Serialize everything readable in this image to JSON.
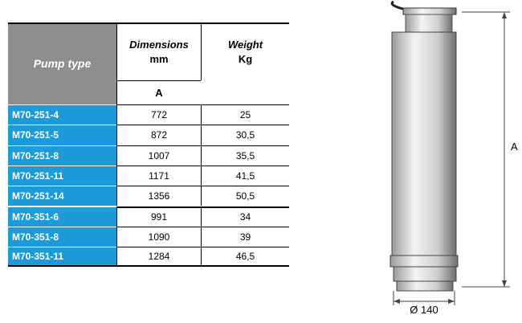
{
  "table": {
    "header": {
      "pump_type": "Pump type",
      "dimensions": [
        "Dimensions",
        "mm"
      ],
      "dimension_sub": "A",
      "weight": [
        "Weight",
        "Kg"
      ]
    },
    "rows": [
      [
        "M70-251-4",
        "772",
        "25"
      ],
      [
        "M70-251-5",
        "872",
        "30,5"
      ],
      [
        "M70-251-8",
        "1007",
        "35,5"
      ],
      [
        "M70-251-11",
        "1171",
        "41,5"
      ],
      [
        "M70-251-14",
        "1356",
        "50,5"
      ],
      [
        "M70-351-6",
        "991",
        "34"
      ],
      [
        "M70-351-8",
        "1090",
        "39"
      ],
      [
        "M70-351-11",
        "1284",
        "46,5"
      ]
    ]
  },
  "drawing": {
    "height_label": "A",
    "diameter_label": "Ø 140"
  }
}
